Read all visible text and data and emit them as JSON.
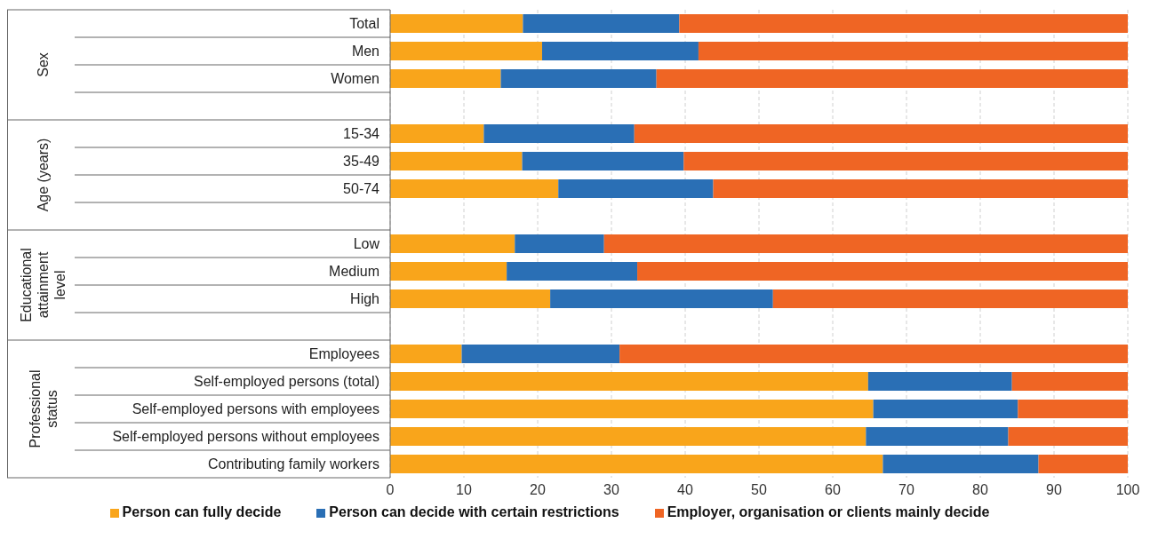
{
  "chart_data": {
    "type": "bar",
    "orientation": "horizontal",
    "stacked": true,
    "categories": [
      "Total",
      "Men",
      "Women",
      null,
      "15-34",
      "35-49",
      "50-74",
      null,
      "Low",
      "Medium",
      "High",
      null,
      "Employees",
      "Self-employed persons (total)",
      "Self-employed persons with employees",
      "Self-employed persons without employees",
      "Contributing family workers"
    ],
    "series": [
      {
        "name": "Person can fully decide",
        "color": "#f9a51b",
        "values": [
          18.0,
          20.6,
          15.0,
          null,
          12.7,
          17.9,
          22.8,
          null,
          16.9,
          15.8,
          21.7,
          null,
          9.7,
          64.8,
          65.5,
          64.5,
          66.8
        ]
      },
      {
        "name": "Person can decide with certain restrictions",
        "color": "#2a6fb5",
        "values": [
          21.2,
          21.2,
          21.1,
          null,
          20.4,
          21.9,
          21.0,
          null,
          12.1,
          17.7,
          30.2,
          null,
          21.4,
          19.5,
          19.6,
          19.3,
          21.1
        ]
      },
      {
        "name": "Employer, organisation or clients mainly decide",
        "color": "#ef6524",
        "values": [
          60.8,
          58.2,
          63.9,
          null,
          66.9,
          60.2,
          56.2,
          null,
          71.0,
          66.5,
          48.1,
          null,
          68.9,
          15.7,
          14.9,
          16.2,
          12.1
        ]
      }
    ],
    "annotations": [
      "Sex",
      "Age (years)",
      "Educational attainment level",
      "Professional status"
    ],
    "xlim": [
      0,
      100
    ],
    "xticks": [
      0,
      10,
      20,
      30,
      40,
      50,
      60,
      70,
      80,
      90,
      100
    ],
    "grid": "x",
    "legend": "bottom"
  }
}
